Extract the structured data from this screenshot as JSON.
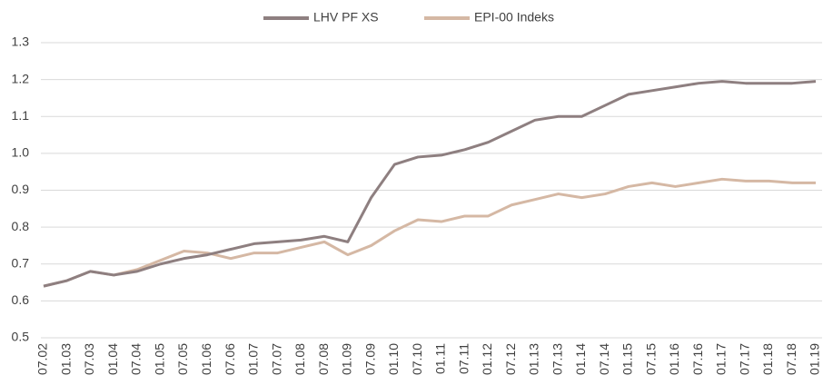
{
  "chart_data": {
    "type": "line",
    "categories": [
      "07.02",
      "01.03",
      "07.03",
      "01.04",
      "07.04",
      "01.05",
      "07.05",
      "01.06",
      "07.06",
      "01.07",
      "07.07",
      "01.08",
      "07.08",
      "01.09",
      "07.09",
      "01.10",
      "07.10",
      "01.11",
      "07.11",
      "01.12",
      "07.12",
      "01.13",
      "07.13",
      "01.14",
      "07.14",
      "01.15",
      "07.15",
      "01.16",
      "07.16",
      "01.17",
      "07.17",
      "01.18",
      "07.18",
      "01.19"
    ],
    "series": [
      {
        "name": "LHV PF XS",
        "color": "#8e7f80",
        "values": [
          0.64,
          0.655,
          0.68,
          0.67,
          0.68,
          0.7,
          0.715,
          0.725,
          0.74,
          0.755,
          0.76,
          0.765,
          0.775,
          0.76,
          0.88,
          0.97,
          0.99,
          0.995,
          1.01,
          1.03,
          1.06,
          1.09,
          1.1,
          1.1,
          1.13,
          1.16,
          1.17,
          1.18,
          1.19,
          1.195,
          1.19,
          1.19,
          1.19,
          1.195
        ]
      },
      {
        "name": "EPI-00 Indeks",
        "color": "#d5b8a4",
        "values": [
          0.64,
          0.655,
          0.68,
          0.67,
          0.685,
          0.71,
          0.735,
          0.73,
          0.715,
          0.73,
          0.73,
          0.745,
          0.76,
          0.725,
          0.75,
          0.79,
          0.82,
          0.815,
          0.83,
          0.83,
          0.86,
          0.875,
          0.89,
          0.88,
          0.89,
          0.91,
          0.92,
          0.91,
          0.92,
          0.93,
          0.925,
          0.925,
          0.92,
          0.92
        ]
      }
    ],
    "ylim": [
      0.5,
      1.3
    ],
    "yticks": [
      0.5,
      0.6,
      0.7,
      0.8,
      0.9,
      {
        "value": 1.0,
        "label": "1.0"
      },
      1.1,
      1.2,
      1.3
    ],
    "grid": true,
    "legend": "top"
  }
}
